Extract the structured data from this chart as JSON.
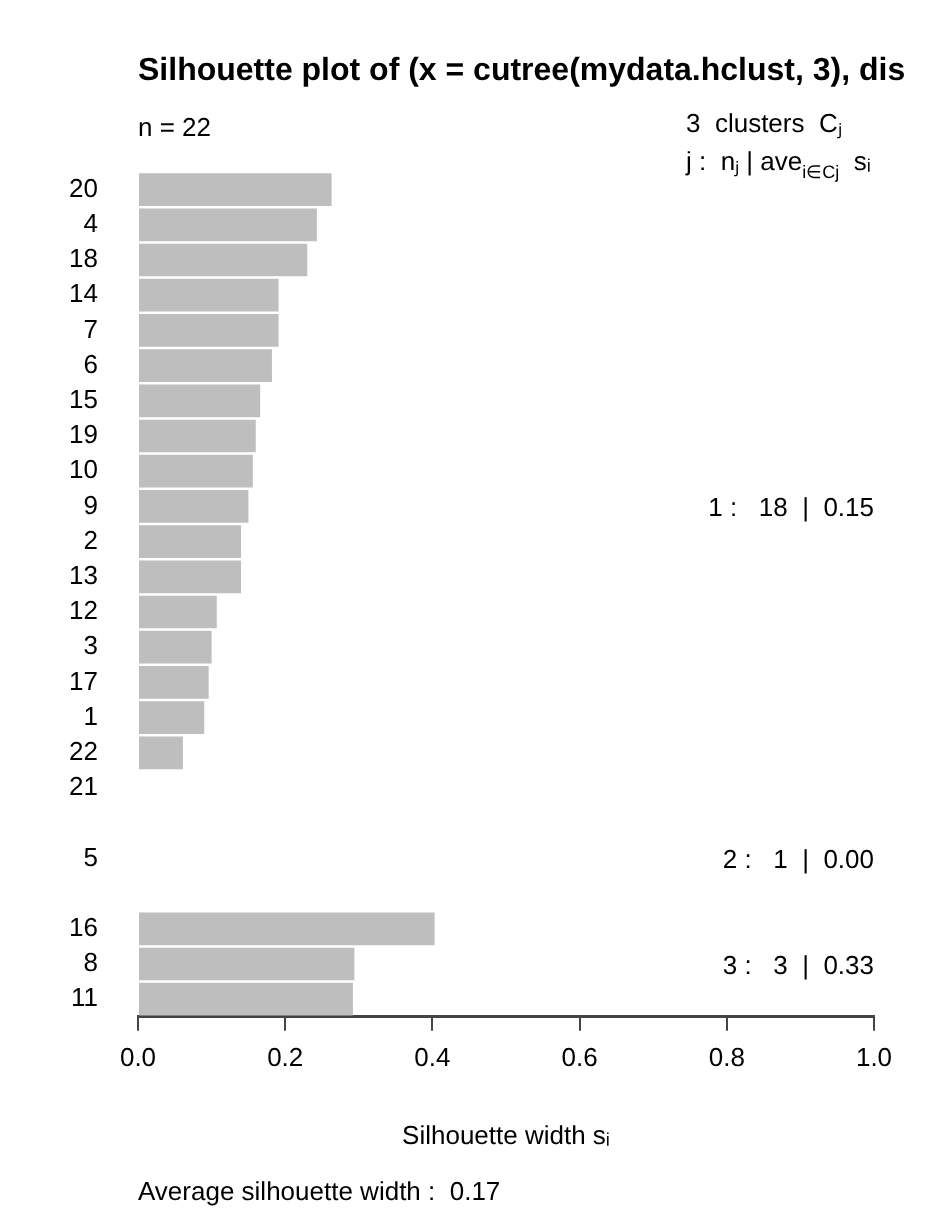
{
  "chart_data": {
    "type": "bar",
    "orientation": "horizontal",
    "title": "Silhouette plot of (x = cutree(mydata.hclust, 3), dis",
    "xlabel": "Silhouette width sᵢ",
    "categories": [
      "20",
      "4",
      "18",
      "14",
      "7",
      "6",
      "15",
      "19",
      "10",
      "9",
      "2",
      "13",
      "12",
      "3",
      "17",
      "1",
      "22",
      "21",
      null,
      "5",
      null,
      "16",
      "8",
      "11"
    ],
    "values": [
      0.263,
      0.243,
      0.23,
      0.191,
      0.191,
      0.182,
      0.166,
      0.16,
      0.156,
      0.15,
      0.14,
      0.14,
      0.107,
      0.1,
      0.096,
      0.09,
      0.061,
      0,
      null,
      0,
      null,
      0.403,
      0.294,
      0.292
    ],
    "color": "#bebebe",
    "xlim": [
      0,
      1
    ],
    "xticks": [
      {
        "value": 0,
        "label": "0.0"
      },
      0.2,
      0.4,
      0.6,
      0.8,
      {
        "value": 1,
        "label": "1.0"
      }
    ],
    "grid": false,
    "legend": false,
    "annotations": [
      "n = 22",
      "3  clusters  Cⱼ",
      "j :  nⱼ | ave$_{i∈Cj}$  sᵢ",
      "1 :   18  |  0.15",
      "2 :   1  |  0.00",
      "3 :   3  |  0.33",
      "Average silhouette width :  0.17"
    ]
  }
}
